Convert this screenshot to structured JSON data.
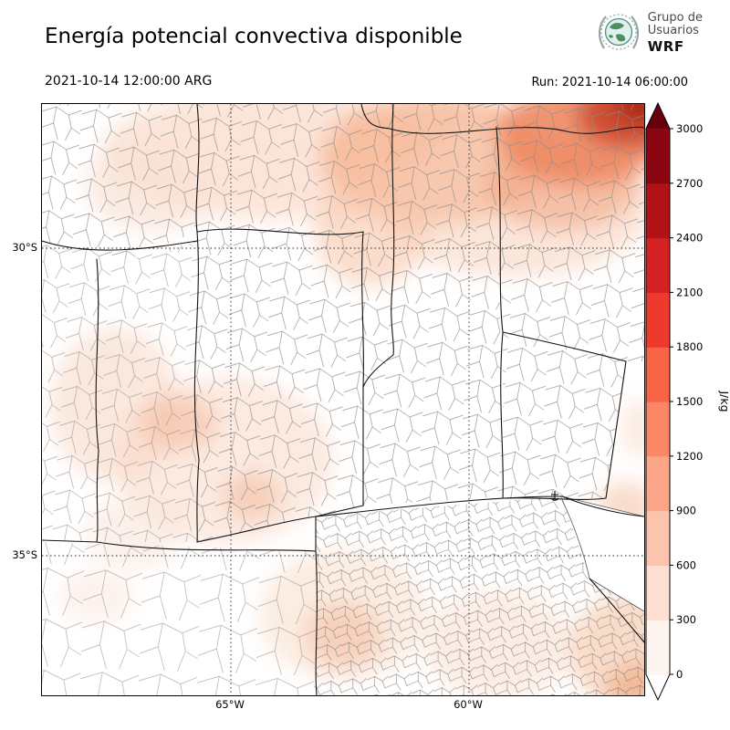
{
  "header": {
    "title": "Energía potencial convectiva disponible",
    "logo": {
      "line1": "Grupo de",
      "line2": "Usuarios",
      "line3": "WRF"
    }
  },
  "times": {
    "valid": "2021-10-14 12:00:00 ARG",
    "run": "Run: 2021-10-14 06:00:00"
  },
  "axes": {
    "lat": [
      "30°S",
      "35°S"
    ],
    "lon": [
      "65°W",
      "60°W"
    ]
  },
  "colorbar": {
    "unit": "J/kg",
    "ticks": [
      0,
      300,
      600,
      900,
      1200,
      1500,
      1800,
      2100,
      2400,
      2700,
      3000
    ],
    "segment_colors_bottom_to_top": [
      "#fff5f0",
      "#fee0d2",
      "#fcc4ad",
      "#fca689",
      "#fc8767",
      "#f96346",
      "#ee3a2c",
      "#d42121",
      "#b11218",
      "#8a050f"
    ],
    "over_color": "#67000d",
    "under_color": "#ffffff",
    "outline_color": "#000000"
  },
  "chart_data": {
    "type": "heatmap",
    "title": "Energía potencial convectiva disponible",
    "variable": "CAPE (convective available potential energy)",
    "units": "J/kg",
    "valid_time": "2021-10-14 12:00:00 ARG",
    "run_time": "2021-10-14 06:00:00",
    "colorbar_ticks": [
      0,
      300,
      600,
      900,
      1200,
      1500,
      1800,
      2100,
      2400,
      2700,
      3000
    ],
    "colorbar_range": [
      0,
      3000
    ],
    "lat_gridlines": [
      "30°S",
      "35°S"
    ],
    "lon_gridlines": [
      "65°W",
      "60°W"
    ],
    "regions": [
      {
        "area": "far northeast corner of map",
        "approx_cape_jkg": 2400
      },
      {
        "area": "northeast quadrant band",
        "approx_cape_jkg": 900
      },
      {
        "area": "north-central band near top edge",
        "approx_cape_jkg": 500
      },
      {
        "area": "west and central-west scattered patches",
        "approx_cape_jkg": 300
      },
      {
        "area": "south-central patches",
        "approx_cape_jkg": 300
      },
      {
        "area": "southeast coastal corner",
        "approx_cape_jkg": 500
      },
      {
        "area": "central interior (mostly clear)",
        "approx_cape_jkg": 0
      }
    ]
  }
}
